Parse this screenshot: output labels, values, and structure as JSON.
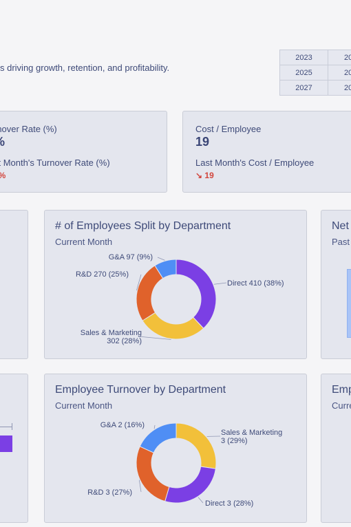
{
  "header": {
    "subtitle": "s driving growth, retention, and profitability.",
    "years": [
      [
        "2023",
        "20"
      ],
      [
        "2025",
        "20"
      ],
      [
        "2027",
        "20"
      ]
    ]
  },
  "kpi_turnover": {
    "label": "rnover Rate (%)",
    "value": "%",
    "last_label": "st Month's Turnover Rate (%)",
    "last_value": "1%"
  },
  "kpi_cost": {
    "label": "Cost / Employee",
    "value": "19",
    "last_label": "Last Month's Cost / Employee",
    "last_value": "↘ 19"
  },
  "card_split": {
    "title": "# of Employees Split by Department",
    "subtitle": "Current Month",
    "chart_data": {
      "type": "pie",
      "labels": [
        "Direct",
        "Sales & Marketing",
        "R&D",
        "G&A"
      ],
      "values": [
        410,
        302,
        270,
        97
      ],
      "percents": [
        38,
        28,
        25,
        9
      ],
      "colors": [
        "#7b3fe4",
        "#f2c03a",
        "#e0622b",
        "#4f8ef5"
      ],
      "slice_labels": [
        "Direct 410 (38%)",
        "Sales & Marketing|302 (28%)",
        "R&D 270 (25%)",
        "G&A 97 (9%)"
      ]
    }
  },
  "card_turnover_dept": {
    "title": "Employee Turnover by Department",
    "subtitle": "Current Month",
    "chart_data": {
      "type": "pie",
      "labels": [
        "Sales & Marketing",
        "Direct",
        "R&D",
        "G&A"
      ],
      "values": [
        3,
        3,
        3,
        2
      ],
      "percents": [
        29,
        28,
        27,
        16
      ],
      "colors": [
        "#f2c03a",
        "#7b3fe4",
        "#e0622b",
        "#4f8ef5"
      ],
      "slice_labels": [
        "Sales & Marketing|3 (29%)",
        "Direct 3 (28%)",
        "R&D 3 (27%)",
        "G&A 2 (16%)"
      ]
    }
  },
  "card_net": {
    "title": "Net",
    "subtitle": "Past"
  },
  "card_emp": {
    "title": "Emp",
    "subtitle": "Curre"
  },
  "colors": {
    "card_bg": "#e4e6ee",
    "accent_down": "#d2463d",
    "bar_blue": "#a9c4f7",
    "bar_purple": "#7b3fe4"
  }
}
